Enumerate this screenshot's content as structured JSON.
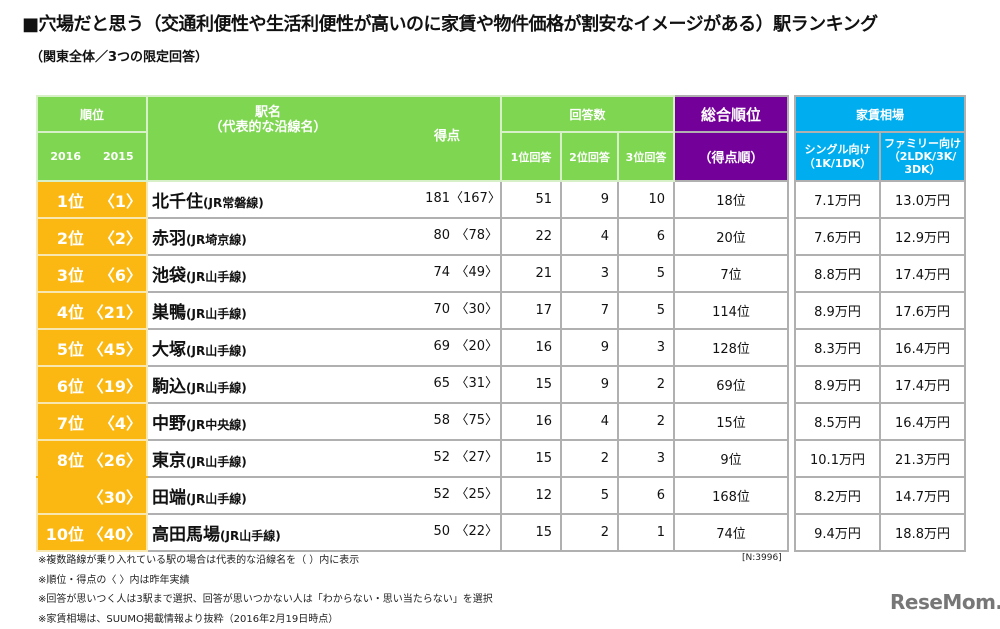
{
  "title": "■穴場だと思う（交通利便性や生活利便性が高いのに家賃や物件価格が割安なイメージがある）駅ランキング",
  "subtitle": "（関東全体／3つの限定回答）",
  "header": {
    "rank": "順位",
    "year_2016": "2016",
    "year_2015": "2015",
    "station": "駅名",
    "station_sub": "（代表的な沿線名）",
    "score": "得点",
    "answers": "回答数",
    "ans1": "1位回答",
    "ans2": "2位回答",
    "ans3": "3位回答",
    "overall": "総合順位",
    "overall_sub": "（得点順）",
    "rent": "家賃相場",
    "single": "シングル向け\n（1K/1DK）",
    "single_l1": "シングル向け",
    "single_l2": "（1K/1DK）",
    "family_l1": "ファミリー向け",
    "family_l2": "（2LDK/3K/",
    "family_l3": "3DK）"
  },
  "colors": {
    "green": "#7ed651",
    "purple": "#730098",
    "blue": "#00aeef",
    "orange": "#fbb813"
  },
  "rows": [
    {
      "rank2016": "1位",
      "rank2015": "〈1〉",
      "station": "北千住",
      "line": "(JR常磐線)",
      "score": "181",
      "score_prev": "〈167〉",
      "a1": "51",
      "a2": "9",
      "a3": "10",
      "overall": "18位",
      "single": "7.1万円",
      "family": "13.0万円"
    },
    {
      "rank2016": "2位",
      "rank2015": "〈2〉",
      "station": "赤羽",
      "line": "(JR埼京線)",
      "score": "80",
      "score_prev": "〈78〉",
      "a1": "22",
      "a2": "4",
      "a3": "6",
      "overall": "20位",
      "single": "7.6万円",
      "family": "12.9万円"
    },
    {
      "rank2016": "3位",
      "rank2015": "〈6〉",
      "station": "池袋",
      "line": "(JR山手線)",
      "score": "74",
      "score_prev": "〈49〉",
      "a1": "21",
      "a2": "3",
      "a3": "5",
      "overall": "7位",
      "single": "8.8万円",
      "family": "17.4万円"
    },
    {
      "rank2016": "4位",
      "rank2015": "〈21〉",
      "station": "巣鴨",
      "line": "(JR山手線)",
      "score": "70",
      "score_prev": "〈30〉",
      "a1": "17",
      "a2": "7",
      "a3": "5",
      "overall": "114位",
      "single": "8.9万円",
      "family": "17.6万円"
    },
    {
      "rank2016": "5位",
      "rank2015": "〈45〉",
      "station": "大塚",
      "line": "(JR山手線)",
      "score": "69",
      "score_prev": "〈20〉",
      "a1": "16",
      "a2": "9",
      "a3": "3",
      "overall": "128位",
      "single": "8.3万円",
      "family": "16.4万円"
    },
    {
      "rank2016": "6位",
      "rank2015": "〈19〉",
      "station": "駒込",
      "line": "(JR山手線)",
      "score": "65",
      "score_prev": "〈31〉",
      "a1": "15",
      "a2": "9",
      "a3": "2",
      "overall": "69位",
      "single": "8.9万円",
      "family": "17.4万円"
    },
    {
      "rank2016": "7位",
      "rank2015": "〈4〉",
      "station": "中野",
      "line": "(JR中央線)",
      "score": "58",
      "score_prev": "〈75〉",
      "a1": "16",
      "a2": "4",
      "a3": "2",
      "overall": "15位",
      "single": "8.5万円",
      "family": "16.4万円"
    },
    {
      "rank2016": "8位",
      "rank2015": "〈26〉",
      "station": "東京",
      "line": "(JR山手線)",
      "score": "52",
      "score_prev": "〈27〉",
      "a1": "15",
      "a2": "2",
      "a3": "3",
      "overall": "9位",
      "single": "10.1万円",
      "family": "21.3万円"
    },
    {
      "rank2016": "",
      "rank2015": "〈30〉",
      "station": "田端",
      "line": "(JR山手線)",
      "score": "52",
      "score_prev": "〈25〉",
      "a1": "12",
      "a2": "5",
      "a3": "6",
      "overall": "168位",
      "single": "8.2万円",
      "family": "14.7万円"
    },
    {
      "rank2016": "10位",
      "rank2015": "〈40〉",
      "station": "高田馬場",
      "line": "(JR山手線)",
      "score": "50",
      "score_prev": "〈22〉",
      "a1": "15",
      "a2": "2",
      "a3": "1",
      "overall": "74位",
      "single": "9.4万円",
      "family": "18.8万円"
    }
  ],
  "sample_size": "[N:3996]",
  "notes": [
    "※複数路線が乗り入れている駅の場合は代表的な沿線名を（ ）内に表示",
    "※順位・得点の〈 〉内は昨年実績",
    "※回答が思いつく人は3駅まで選択、回答が思いつかない人は「わからない・思い当たらない」を選択",
    "※家賃相場は、SUUMO掲載情報より抜粋（2016年2月19日時点）"
  ],
  "logo": "ReseMom."
}
